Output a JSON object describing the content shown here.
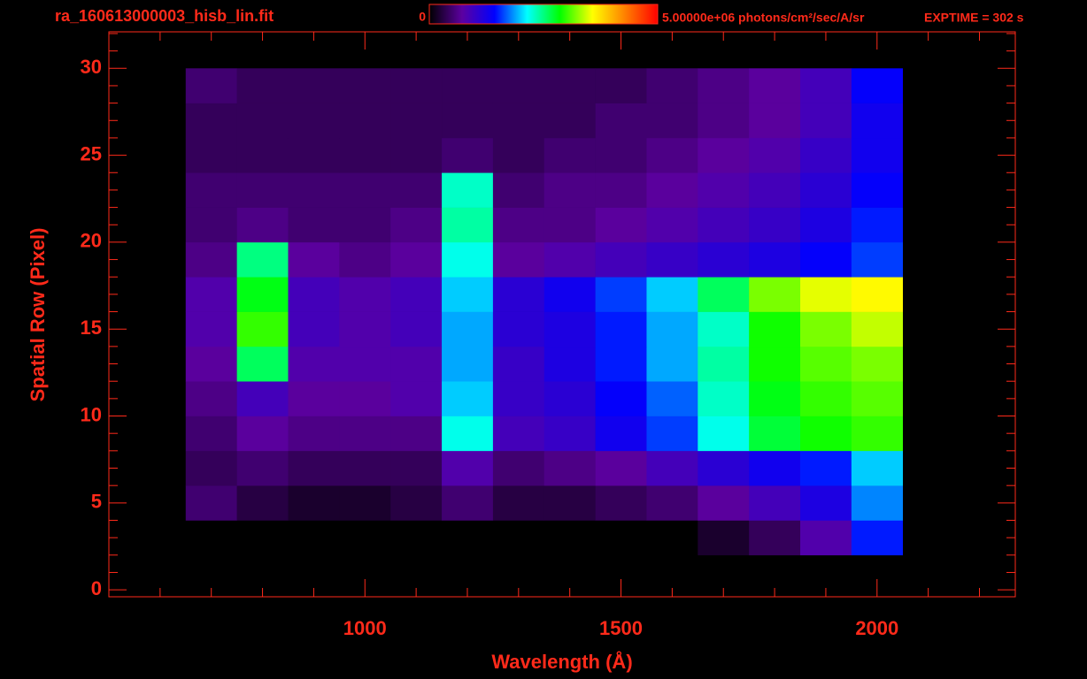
{
  "chart_data": {
    "type": "heatmap",
    "title": "ra_160613000003_hisb_lin.fit",
    "annotation": "EXPTIME = 302 s",
    "x_label": "Wavelength (Å)",
    "y_label": "Spatial Row (Pixel)",
    "xlim": [
      500,
      2270
    ],
    "xticks": [
      1000,
      1500,
      2000
    ],
    "xminorticks": [
      600,
      700,
      800,
      900,
      1100,
      1200,
      1300,
      1400,
      1600,
      1700,
      1800,
      1900,
      2100,
      2200
    ],
    "ylim": [
      -0.4,
      32.1
    ],
    "yticks": [
      0,
      5,
      10,
      15,
      20,
      25,
      30
    ],
    "yminorticks": [
      1,
      2,
      3,
      4,
      6,
      7,
      8,
      9,
      11,
      12,
      13,
      14,
      16,
      17,
      18,
      19,
      21,
      22,
      23,
      24,
      26,
      27,
      28,
      29,
      31,
      32
    ],
    "zlim": [
      0,
      5000000
    ],
    "zticks": [
      0,
      {
        "value": 5000000,
        "label": "5.00000e+06 photons/cm²/sec/A/sr"
      }
    ],
    "colormap": [
      "#000000",
      "#5c00a0",
      "#0000ff",
      "#00ffff",
      "#00ff00",
      "#ffff00",
      "#ff8000",
      "#ff0000"
    ],
    "xbins": [
      650,
      750,
      850,
      950,
      1050,
      1150,
      1250,
      1350,
      1450,
      1550,
      1650,
      1750,
      1850,
      1950,
      2050
    ],
    "ybins": [
      2,
      4,
      6,
      8,
      10,
      12,
      14,
      16,
      18,
      20,
      22,
      24,
      26,
      28,
      30
    ],
    "z": [
      [
        0,
        0,
        0,
        0,
        0,
        0,
        0,
        0,
        0,
        0,
        200000,
        400000,
        800000,
        1500000
      ],
      [
        500000,
        300000,
        200000,
        200000,
        300000,
        500000,
        300000,
        300000,
        400000,
        500000,
        700000,
        900000,
        1200000,
        1800000
      ],
      [
        400000,
        500000,
        400000,
        400000,
        400000,
        800000,
        500000,
        600000,
        700000,
        900000,
        1100000,
        1300000,
        1500000,
        2000000
      ],
      [
        500000,
        700000,
        600000,
        600000,
        600000,
        2200000,
        900000,
        1000000,
        1300000,
        1600000,
        2200000,
        2700000,
        2900000,
        3000000
      ],
      [
        600000,
        900000,
        700000,
        700000,
        800000,
        2000000,
        1000000,
        1100000,
        1400000,
        1700000,
        2300000,
        2800000,
        3000000,
        3100000
      ],
      [
        700000,
        2600000,
        800000,
        800000,
        800000,
        1900000,
        1000000,
        1200000,
        1500000,
        1900000,
        2400000,
        2900000,
        3100000,
        3200000
      ],
      [
        800000,
        3000000,
        900000,
        800000,
        900000,
        1900000,
        1100000,
        1200000,
        1500000,
        1900000,
        2300000,
        2900000,
        3200000,
        3400000
      ],
      [
        800000,
        2800000,
        900000,
        800000,
        900000,
        2000000,
        1100000,
        1300000,
        1600000,
        2000000,
        2600000,
        3200000,
        3500000,
        3600000
      ],
      [
        600000,
        2500000,
        700000,
        600000,
        700000,
        2200000,
        700000,
        800000,
        900000,
        1000000,
        1100000,
        1200000,
        1400000,
        1600000
      ],
      [
        500000,
        600000,
        500000,
        500000,
        600000,
        2400000,
        600000,
        600000,
        700000,
        800000,
        900000,
        1000000,
        1200000,
        1500000
      ],
      [
        500000,
        500000,
        500000,
        500000,
        500000,
        2300000,
        500000,
        600000,
        600000,
        700000,
        800000,
        900000,
        1100000,
        1400000
      ],
      [
        400000,
        400000,
        400000,
        400000,
        400000,
        500000,
        400000,
        500000,
        500000,
        600000,
        700000,
        800000,
        1000000,
        1300000
      ],
      [
        400000,
        400000,
        400000,
        400000,
        400000,
        400000,
        400000,
        400000,
        500000,
        500000,
        600000,
        700000,
        900000,
        1300000
      ],
      [
        500000,
        400000,
        400000,
        400000,
        400000,
        400000,
        400000,
        400000,
        400000,
        500000,
        600000,
        700000,
        900000,
        1400000
      ]
    ]
  }
}
